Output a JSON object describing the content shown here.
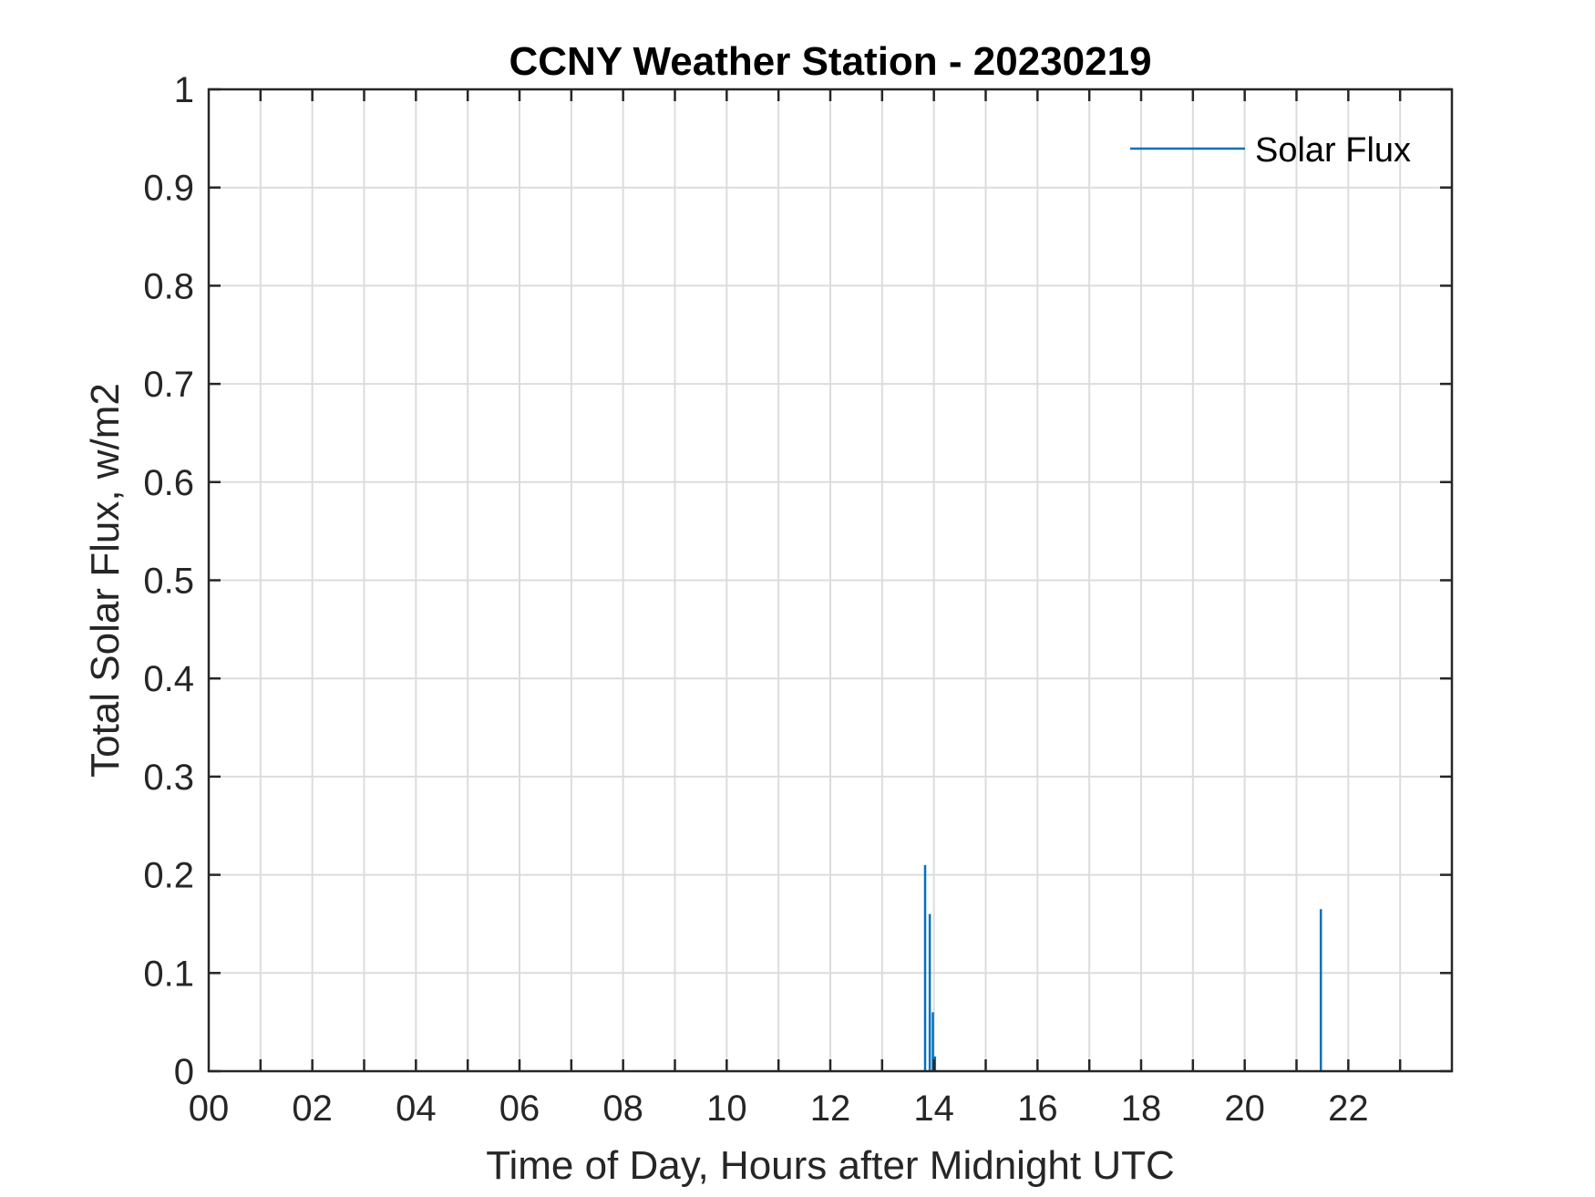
{
  "chart_data": {
    "type": "line",
    "title": "CCNY Weather Station - 20230219",
    "xlabel": "Time of Day, Hours after Midnight UTC",
    "ylabel": "Total Solar Flux, w/m2",
    "xlim": [
      0,
      24
    ],
    "ylim": [
      0,
      1
    ],
    "x_ticks": [
      0,
      2,
      4,
      6,
      8,
      10,
      12,
      14,
      16,
      18,
      20,
      22
    ],
    "x_tick_labels": [
      "00",
      "02",
      "04",
      "06",
      "08",
      "10",
      "12",
      "14",
      "16",
      "18",
      "20",
      "22"
    ],
    "y_ticks": [
      0,
      0.1,
      0.2,
      0.3,
      0.4,
      0.5,
      0.6,
      0.7,
      0.8,
      0.9,
      1
    ],
    "y_tick_labels": [
      "0",
      "0.1",
      "0.2",
      "0.3",
      "0.4",
      "0.5",
      "0.6",
      "0.7",
      "0.8",
      "0.9",
      "1"
    ],
    "grid": true,
    "legend_position": "top-right",
    "series": [
      {
        "name": "Solar Flux",
        "color": "#0072BD",
        "spikes": [
          {
            "x": 13.83,
            "y": 0.21
          },
          {
            "x": 13.92,
            "y": 0.16
          },
          {
            "x": 13.98,
            "y": 0.06
          },
          {
            "x": 14.02,
            "y": 0.015
          },
          {
            "x": 21.47,
            "y": 0.165
          }
        ]
      }
    ]
  }
}
